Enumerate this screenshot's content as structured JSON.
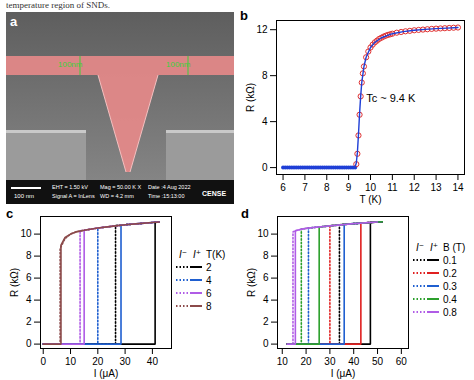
{
  "caption": "temperature region of SNDs.",
  "image_panel": {
    "panel": "a",
    "dimension_labels": [
      "100nm",
      "100nm"
    ],
    "scale_bar": "100 nm",
    "info": [
      "EHT = 1.50 kV",
      "Signal A = InLens",
      "Mag = 50.00 K X",
      "WD = 4.2 mm",
      "Date :4 Aug 2022",
      "Time :15:13:00"
    ],
    "logo": "CENSE"
  },
  "chart_data": [
    {
      "panel": "b",
      "type": "scatter",
      "xlabel": "T (K)",
      "ylabel": "R (kΩ)",
      "xlim": [
        5.7,
        14.3
      ],
      "xticks": [
        6,
        7,
        8,
        9,
        10,
        11,
        12,
        13,
        14
      ],
      "ylim": [
        -0.6,
        12.8
      ],
      "yticks": [
        0,
        4,
        8,
        12
      ],
      "annotations": [
        {
          "text": "Tc ~ 9.4 K",
          "x": 9.8,
          "y": 6
        }
      ],
      "series": [
        {
          "color": "#1f3fd6",
          "marker": "filled_circle",
          "x": [
            6.0,
            6.1,
            6.2,
            6.3,
            6.4,
            6.5,
            6.6,
            6.7,
            6.8,
            6.9,
            7.0,
            7.1,
            7.2,
            7.3,
            7.4,
            7.5,
            7.6,
            7.7,
            7.8,
            7.9,
            8.0,
            8.1,
            8.2,
            8.3,
            8.4,
            8.5,
            8.6,
            8.7,
            8.8,
            8.9,
            9.0,
            9.1,
            9.2,
            9.3
          ],
          "values": [
            0,
            0,
            0,
            0,
            0,
            0,
            0,
            0,
            0,
            0,
            0,
            0,
            0,
            0,
            0,
            0,
            0,
            0,
            0,
            0,
            0,
            0,
            0,
            0,
            0,
            0,
            0,
            0,
            0,
            0,
            0,
            0,
            0,
            0
          ]
        },
        {
          "color": "#e03030",
          "marker": "open_circle",
          "x": [
            9.35,
            9.4,
            9.45,
            9.5,
            9.55,
            9.6,
            9.65,
            9.7,
            9.8,
            9.9,
            10.0,
            10.1,
            10.2,
            10.3,
            10.4,
            10.5,
            10.6,
            10.7,
            10.8,
            10.9,
            11.0,
            11.2,
            11.4,
            11.6,
            11.8,
            12.0,
            12.2,
            12.4,
            12.6,
            12.8,
            13.0,
            13.2,
            13.4,
            13.6,
            13.8,
            14.0
          ],
          "values": [
            0.3,
            1.2,
            2.8,
            4.6,
            6.2,
            7.4,
            8.2,
            8.8,
            9.6,
            10.1,
            10.45,
            10.7,
            10.9,
            11.05,
            11.2,
            11.3,
            11.4,
            11.48,
            11.55,
            11.6,
            11.65,
            11.74,
            11.8,
            11.86,
            11.9,
            11.95,
            11.98,
            12.01,
            12.04,
            12.07,
            12.09,
            12.11,
            12.13,
            12.15,
            12.17,
            12.19
          ]
        },
        {
          "color": "#1f3fd6",
          "type": "line",
          "x": [
            9.2,
            9.3,
            9.35,
            9.4,
            9.45,
            9.5,
            9.55,
            9.6,
            9.7,
            9.8,
            10.0,
            10.2,
            10.5,
            11.0,
            11.5,
            12.0,
            12.5,
            13.0,
            13.5,
            14.0
          ],
          "values": [
            0,
            0.1,
            0.4,
            1.3,
            2.9,
            4.7,
            6.2,
            7.4,
            8.8,
            9.6,
            10.45,
            10.9,
            11.3,
            11.65,
            11.83,
            11.95,
            12.03,
            12.09,
            12.14,
            12.19
          ]
        }
      ]
    },
    {
      "panel": "c",
      "type": "line",
      "xlabel": "I (μA)",
      "ylabel": "R (kΩ)",
      "xlim": [
        -1,
        47
      ],
      "xticks": [
        0,
        10,
        20,
        30,
        40
      ],
      "ylim": [
        -0.4,
        11.6
      ],
      "yticks": [
        0,
        2,
        4,
        6,
        8,
        10
      ],
      "legend": "right",
      "legend_title": "T(K)",
      "sweeps": [
        {
          "name": "I⁻",
          "line_style": "dotted"
        },
        {
          "name": "I⁺",
          "line_style": "solid"
        }
      ],
      "series": [
        {
          "name": "2",
          "color": "#000000",
          "curves": {
            "I⁻": {
              "x": [
                42.5,
                40,
                35,
                30,
                26.5,
                26.5,
                0
              ],
              "values": [
                11.1,
                11.05,
                10.95,
                10.85,
                10.78,
                0,
                0
              ]
            },
            "I⁺": {
              "x": [
                0,
                41,
                41,
                42.5
              ],
              "values": [
                0,
                0,
                11.05,
                11.1
              ]
            }
          }
        },
        {
          "name": "4",
          "color": "#1f5fd0",
          "curves": {
            "I⁻": {
              "x": [
                42.5,
                40,
                35,
                30,
                25,
                20,
                20,
                0
              ],
              "values": [
                11.1,
                11.05,
                10.95,
                10.85,
                10.7,
                10.55,
                0,
                0
              ]
            },
            "I⁺": {
              "x": [
                0,
                28.5,
                28.5,
                30,
                35,
                40,
                42.5
              ],
              "values": [
                0,
                0,
                10.8,
                10.85,
                10.95,
                11.05,
                11.1
              ]
            }
          }
        },
        {
          "name": "6",
          "color": "#b05ce6",
          "curves": {
            "I⁻": {
              "x": [
                42.5,
                40,
                35,
                30,
                25,
                20,
                15,
                13.5,
                13.5,
                0
              ],
              "values": [
                11.1,
                11.05,
                10.95,
                10.85,
                10.7,
                10.55,
                10.35,
                10.3,
                0,
                0
              ]
            },
            "I⁺": {
              "x": [
                0,
                15,
                15,
                20,
                25,
                30,
                35,
                40,
                42.5
              ],
              "values": [
                0,
                0,
                10.35,
                10.55,
                10.7,
                10.85,
                10.95,
                11.05,
                11.1
              ]
            }
          }
        },
        {
          "name": "8",
          "color": "#8b4a4a",
          "curves": {
            "I⁻": {
              "x": [
                42.5,
                40,
                35,
                30,
                25,
                20,
                15,
                12,
                10,
                8,
                6.2,
                6.2,
                0
              ],
              "values": [
                11.1,
                11.05,
                10.95,
                10.85,
                10.7,
                10.55,
                10.35,
                10.2,
                10.0,
                9.6,
                8.7,
                0,
                0
              ]
            },
            "I⁺": {
              "x": [
                0,
                6.5,
                6.5,
                8,
                10,
                12,
                15,
                20,
                25,
                30,
                35,
                40,
                42.5
              ],
              "values": [
                0,
                0,
                9.0,
                9.7,
                10.0,
                10.2,
                10.35,
                10.55,
                10.7,
                10.85,
                10.95,
                11.05,
                11.1
              ]
            }
          }
        }
      ]
    },
    {
      "panel": "d",
      "type": "line",
      "xlabel": "I (μA)",
      "ylabel": "R (kΩ)",
      "xlim": [
        8,
        63
      ],
      "xticks": [
        10,
        20,
        30,
        40,
        50,
        60
      ],
      "ylim": [
        -0.4,
        11.6
      ],
      "yticks": [
        0,
        2,
        4,
        6,
        8,
        10
      ],
      "legend": "right",
      "legend_title": "B (T)",
      "sweeps": [
        {
          "name": "I⁻",
          "line_style": "dotted"
        },
        {
          "name": "I⁺",
          "line_style": "solid"
        }
      ],
      "series": [
        {
          "name": "0.1",
          "color": "#000000",
          "curves": {
            "I⁻": {
              "x": [
                52,
                50,
                47,
                43,
                40,
                36,
                34,
                34,
                12
              ],
              "values": [
                11.12,
                11.1,
                11.05,
                11.0,
                10.95,
                10.88,
                10.85,
                0,
                0
              ]
            },
            "I⁺": {
              "x": [
                12,
                47,
                47,
                50,
                52
              ],
              "values": [
                0,
                0,
                11.05,
                11.1,
                11.12
              ]
            }
          }
        },
        {
          "name": "0.2",
          "color": "#e02020",
          "curves": {
            "I⁻": {
              "x": [
                52,
                50,
                47,
                43,
                40,
                34,
                30,
                30,
                12
              ],
              "values": [
                11.12,
                11.1,
                11.05,
                11.0,
                10.95,
                10.85,
                10.75,
                0,
                0
              ]
            },
            "I⁺": {
              "x": [
                12,
                43,
                43,
                47,
                50,
                52
              ],
              "values": [
                0,
                0,
                11.0,
                11.05,
                11.1,
                11.12
              ]
            }
          }
        },
        {
          "name": "0.3",
          "color": "#1f5fd0",
          "curves": {
            "I⁻": {
              "x": [
                52,
                50,
                47,
                43,
                40,
                36,
                30,
                25.5,
                21,
                21,
                12
              ],
              "values": [
                11.12,
                11.1,
                11.05,
                11.0,
                10.95,
                10.88,
                10.75,
                10.65,
                10.55,
                0,
                0
              ]
            },
            "I⁺": {
              "x": [
                12,
                36,
                36,
                40,
                43,
                47,
                50,
                52
              ],
              "values": [
                0,
                0,
                10.88,
                10.95,
                11.0,
                11.05,
                11.1,
                11.12
              ]
            }
          }
        },
        {
          "name": "0.4",
          "color": "#2ca02c",
          "curves": {
            "I⁻": {
              "x": [
                52,
                47,
                40,
                30,
                25.5,
                21,
                18,
                18,
                12
              ],
              "values": [
                11.12,
                11.05,
                10.95,
                10.75,
                10.65,
                10.55,
                10.45,
                0,
                0
              ]
            },
            "I⁺": {
              "x": [
                12,
                25.5,
                25.5,
                30,
                36,
                40,
                47,
                52
              ],
              "values": [
                0,
                0,
                10.65,
                10.75,
                10.88,
                10.95,
                11.05,
                11.12
              ]
            }
          }
        },
        {
          "name": "0.8",
          "color": "#b05ce6",
          "curves": {
            "I⁻": {
              "x": [
                50,
                40,
                30,
                21,
                18,
                15.5,
                14.5,
                14.5,
                12
              ],
              "values": [
                11.1,
                10.95,
                10.75,
                10.55,
                10.45,
                10.3,
                10.2,
                0,
                0
              ]
            },
            "I⁺": {
              "x": [
                12,
                15.5,
                15.5,
                18,
                21,
                30,
                40,
                50
              ],
              "values": [
                0,
                0,
                10.3,
                10.45,
                10.55,
                10.75,
                10.95,
                11.1
              ]
            }
          }
        }
      ]
    }
  ]
}
